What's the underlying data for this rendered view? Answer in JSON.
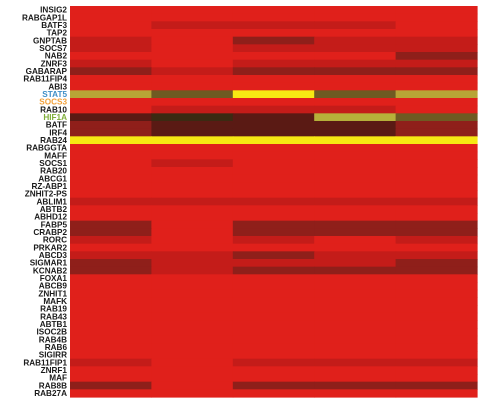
{
  "chart_data": {
    "type": "heatmap",
    "title": "",
    "xlabel": "",
    "ylabel": "",
    "columns": 5,
    "rows": [
      {
        "label": "INSIG2",
        "values": [
          1,
          1,
          1,
          1,
          1
        ]
      },
      {
        "label": "RABGAP1L",
        "values": [
          1,
          1,
          1,
          1,
          1
        ]
      },
      {
        "label": "BATF3",
        "values": [
          1,
          2,
          2,
          2,
          1
        ]
      },
      {
        "label": "TAP2",
        "values": [
          1,
          1,
          1,
          1,
          1
        ]
      },
      {
        "label": "GNPTAB",
        "values": [
          2,
          1,
          3,
          2,
          2
        ]
      },
      {
        "label": "SOCS7",
        "values": [
          2,
          1,
          2,
          2,
          2
        ]
      },
      {
        "label": "NAB2",
        "values": [
          1,
          1,
          1,
          1,
          3
        ]
      },
      {
        "label": "ZNRF3",
        "values": [
          2,
          1,
          2,
          2,
          2
        ]
      },
      {
        "label": "GABARAP",
        "values": [
          3,
          2,
          3,
          3,
          3
        ]
      },
      {
        "label": "RAB11FIP4",
        "values": [
          1,
          1,
          1,
          1,
          1
        ]
      },
      {
        "label": "ABI3",
        "values": [
          1,
          1,
          1,
          1,
          1
        ]
      },
      {
        "label": "STAT5",
        "values": [
          8,
          5,
          9,
          5,
          8
        ],
        "label_color": "#3f8fc7"
      },
      {
        "label": "SOCS3",
        "values": [
          1,
          1,
          1,
          1,
          1
        ],
        "label_color": "#f2a13a"
      },
      {
        "label": "RAB10",
        "values": [
          1,
          2,
          2,
          2,
          1
        ]
      },
      {
        "label": "HIF1A",
        "values": [
          4,
          6,
          4,
          7,
          5
        ],
        "label_color": "#7fae3a"
      },
      {
        "label": "BATF",
        "values": [
          3,
          4,
          4,
          4,
          3
        ]
      },
      {
        "label": "IRF4",
        "values": [
          3,
          4,
          4,
          4,
          3
        ]
      },
      {
        "label": "RAB24",
        "values": [
          9,
          9,
          9,
          9,
          9
        ]
      },
      {
        "label": "RABGGTA",
        "values": [
          1,
          1,
          1,
          1,
          1
        ]
      },
      {
        "label": "MAFF",
        "values": [
          1,
          1,
          1,
          1,
          1
        ]
      },
      {
        "label": "SOCS1",
        "values": [
          1,
          2,
          1,
          1,
          1
        ]
      },
      {
        "label": "RAB20",
        "values": [
          1,
          1,
          1,
          1,
          1
        ]
      },
      {
        "label": "ABCG1",
        "values": [
          1,
          1,
          1,
          1,
          1
        ]
      },
      {
        "label": "RZ-ABP1",
        "values": [
          1,
          1,
          1,
          1,
          1
        ]
      },
      {
        "label": "ZNHIT2-PS",
        "values": [
          1,
          1,
          1,
          1,
          1
        ]
      },
      {
        "label": "ABLIM1",
        "values": [
          2,
          2,
          2,
          2,
          2
        ]
      },
      {
        "label": "ABTB2",
        "values": [
          1,
          1,
          1,
          1,
          1
        ]
      },
      {
        "label": "ABHD12",
        "values": [
          1,
          1,
          1,
          1,
          1
        ]
      },
      {
        "label": "FABP5",
        "values": [
          3,
          1,
          3,
          3,
          3
        ]
      },
      {
        "label": "CRABP2",
        "values": [
          3,
          1,
          3,
          3,
          3
        ]
      },
      {
        "label": "RORC",
        "values": [
          2,
          1,
          2,
          1,
          2
        ]
      },
      {
        "label": "PRKAR2",
        "values": [
          1,
          1,
          1,
          1,
          1
        ]
      },
      {
        "label": "ABCD3",
        "values": [
          2,
          2,
          3,
          2,
          2
        ]
      },
      {
        "label": "SIGMAR1",
        "values": [
          3,
          2,
          2,
          2,
          3
        ]
      },
      {
        "label": "KCNAB2",
        "values": [
          3,
          2,
          3,
          3,
          3
        ]
      },
      {
        "label": "FOXA1",
        "values": [
          1,
          1,
          1,
          1,
          1
        ]
      },
      {
        "label": "ABCB9",
        "values": [
          1,
          1,
          1,
          1,
          1
        ]
      },
      {
        "label": "ZNHIT1",
        "values": [
          1,
          1,
          1,
          1,
          1
        ]
      },
      {
        "label": "MAFK",
        "values": [
          1,
          1,
          1,
          1,
          1
        ]
      },
      {
        "label": "RAB19",
        "values": [
          1,
          1,
          1,
          1,
          1
        ]
      },
      {
        "label": "RAB43",
        "values": [
          1,
          1,
          1,
          1,
          1
        ]
      },
      {
        "label": "ABTB1",
        "values": [
          1,
          1,
          1,
          1,
          1
        ]
      },
      {
        "label": "ISOC2B",
        "values": [
          1,
          1,
          1,
          1,
          1
        ]
      },
      {
        "label": "RAB4B",
        "values": [
          1,
          1,
          1,
          1,
          1
        ]
      },
      {
        "label": "RAB6",
        "values": [
          1,
          1,
          1,
          1,
          1
        ]
      },
      {
        "label": "SIGIRR",
        "values": [
          1,
          1,
          1,
          1,
          1
        ]
      },
      {
        "label": "RAB11FIP1",
        "values": [
          2,
          1,
          2,
          2,
          2
        ]
      },
      {
        "label": "ZNRF1",
        "values": [
          1,
          1,
          1,
          1,
          1
        ]
      },
      {
        "label": "MAF",
        "values": [
          1,
          1,
          1,
          1,
          1
        ]
      },
      {
        "label": "RAB8B",
        "values": [
          3,
          1,
          3,
          3,
          3
        ]
      },
      {
        "label": "RAB27A",
        "values": [
          1,
          1,
          1,
          1,
          1
        ]
      }
    ],
    "color_scale": {
      "low": "#e0201b",
      "levels": {
        "1": "#e0201b",
        "2": "#c41c19",
        "3": "#8f1f1a",
        "4": "#5a1a14",
        "5": "#6f5a22",
        "6": "#3b2a12",
        "7": "#b6b03a",
        "8": "#b8a436",
        "9": "#f7e813"
      }
    },
    "grid": false,
    "legend": "none"
  }
}
